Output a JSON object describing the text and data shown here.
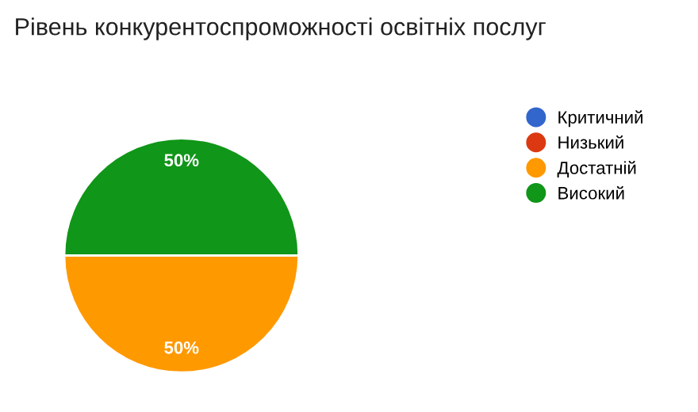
{
  "chart_data": {
    "type": "pie",
    "title": "Рівень конкурентоспроможності освітніх послуг",
    "categories": [
      "Критичний",
      "Низький",
      "Достатній",
      "Високий"
    ],
    "values": [
      0,
      0,
      50,
      50
    ],
    "colors": [
      "#3366cc",
      "#dc3912",
      "#ff9900",
      "#109618"
    ],
    "value_labels": [
      null,
      null,
      "50%",
      "50%"
    ],
    "legend": "right"
  }
}
